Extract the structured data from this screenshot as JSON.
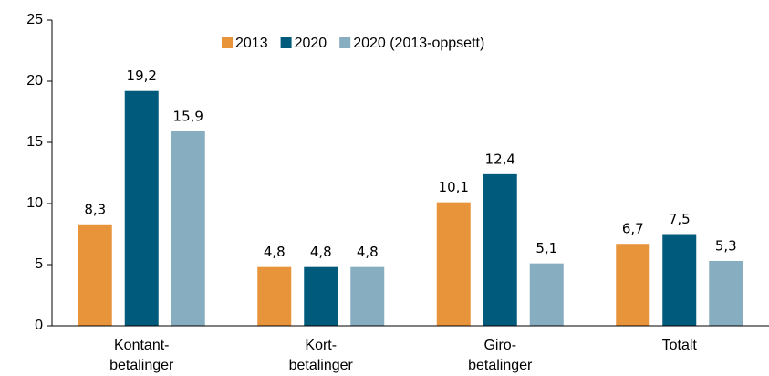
{
  "chart_data": {
    "type": "bar",
    "categories": [
      "Kontant-\nbetalinger",
      "Kort-\nbetalinger",
      "Giro-\nbetalinger",
      "Totalt"
    ],
    "series": [
      {
        "name": "2013",
        "color": "#e8943a",
        "values": [
          8.3,
          4.8,
          10.1,
          6.7
        ],
        "value_labels": [
          "8,3",
          "4,8",
          "10,1",
          "6,7"
        ]
      },
      {
        "name": "2020",
        "color": "#005a7c",
        "values": [
          19.2,
          4.8,
          12.4,
          7.5
        ],
        "value_labels": [
          "19,2",
          "4,8",
          "12,4",
          "7,5"
        ]
      },
      {
        "name": "2020 (2013-oppsett)",
        "color": "#86adc0",
        "values": [
          15.9,
          4.8,
          5.1,
          5.3
        ],
        "value_labels": [
          "15,9",
          "4,8",
          "5,1",
          "5,3"
        ]
      }
    ],
    "ylim": [
      0,
      25
    ],
    "yticks": [
      0,
      5,
      10,
      15,
      20,
      25
    ],
    "legend": "top"
  }
}
